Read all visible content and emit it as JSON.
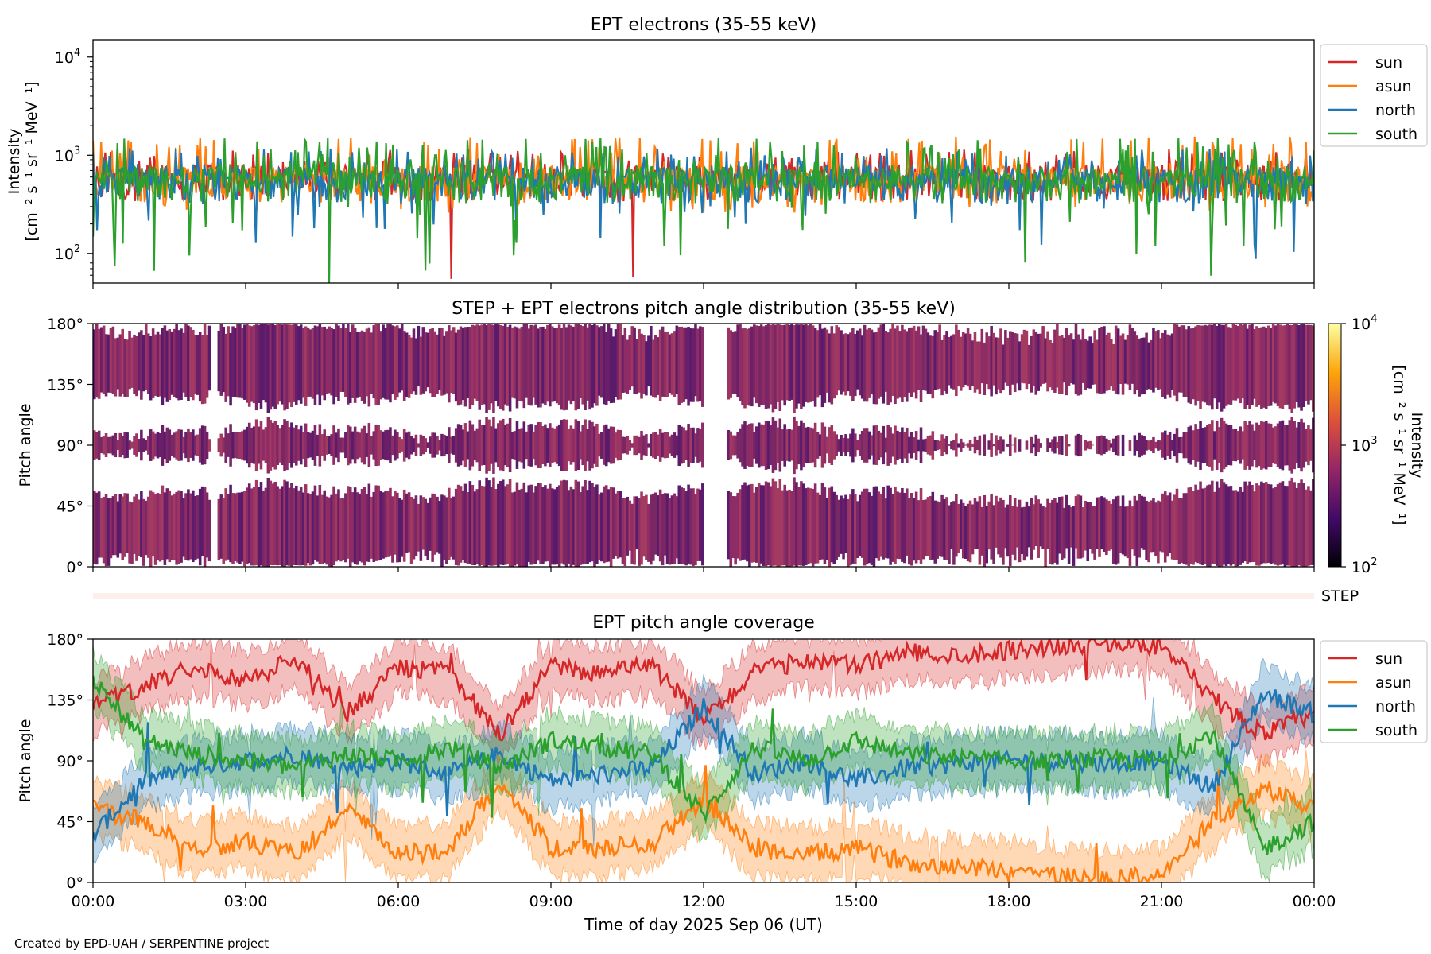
{
  "footer": "Created by EPD-UAH / SERPENTINE project",
  "chart_data": [
    {
      "type": "line",
      "title": "EPT electrons (35-55 keV)",
      "ylabel_line1": "Intensity",
      "ylabel_units": "[cm⁻² s⁻¹ sr⁻¹ MeV⁻¹]",
      "yscale": "log",
      "ylim": [
        50,
        15000
      ],
      "yticks": [
        {
          "value": 100,
          "base": "10",
          "exp": "2"
        },
        {
          "value": 1000,
          "base": "10",
          "exp": "3"
        },
        {
          "value": 10000,
          "base": "10",
          "exp": "4"
        }
      ],
      "xlim_hours": [
        0,
        24
      ],
      "legend_position": "outside-right-top",
      "series": [
        {
          "name": "sun",
          "color": "#d62728",
          "level": 620,
          "noise_low": 380,
          "noise_high": 1150
        },
        {
          "name": "asun",
          "color": "#ff7f0e",
          "level": 600,
          "noise_low": 260,
          "noise_high": 1550
        },
        {
          "name": "north",
          "color": "#1f77b4",
          "level": 580,
          "noise_low": 90,
          "noise_high": 1200
        },
        {
          "name": "south",
          "color": "#2ca02c",
          "level": 590,
          "noise_low": 50,
          "noise_high": 1500
        }
      ],
      "spikes": [
        {
          "series": "south",
          "hour": 4.65,
          "value": 50
        },
        {
          "series": "sun",
          "hour": 7.05,
          "value": 55
        },
        {
          "series": "sun",
          "hour": 10.6,
          "value": 58
        },
        {
          "series": "north",
          "hour": 22.85,
          "value": 88
        }
      ]
    },
    {
      "type": "heatmap",
      "title": "STEP + EPT electrons pitch angle distribution (35-55 keV)",
      "ylabel": "Pitch angle",
      "yticks": [
        "0°",
        "45°",
        "90°",
        "135°",
        "180°"
      ],
      "ylim_deg": [
        0,
        180
      ],
      "xlim_hours": [
        0,
        24
      ],
      "colorbar": {
        "label": "Intensity [cm⁻² s⁻¹ sr⁻¹ MeV⁻¹]",
        "label_title": "Intensity",
        "label_units": "[cm⁻² s⁻¹ sr⁻¹ MeV⁻¹]",
        "scale": "log",
        "range": [
          100,
          10000
        ],
        "ticks": [
          {
            "base": "10",
            "exp": "2"
          },
          {
            "base": "10",
            "exp": "3"
          },
          {
            "base": "10",
            "exp": "4"
          }
        ],
        "colors": [
          "#000004",
          "#420a68",
          "#932667",
          "#dd513a",
          "#fca50a",
          "#fcffa4"
        ]
      },
      "dominant_color": "#8b2e66",
      "vertical_gaps_hours": [
        [
          12.0,
          12.45
        ],
        [
          2.3,
          2.4
        ]
      ]
    },
    {
      "type": "band",
      "label": "STEP",
      "color": "#fdf0ea"
    },
    {
      "type": "line",
      "title": "EPT pitch angle coverage",
      "ylabel": "Pitch angle",
      "yticks": [
        "0°",
        "45°",
        "90°",
        "135°",
        "180°"
      ],
      "ylim_deg": [
        0,
        180
      ],
      "xlabel": "Time of day 2025 Sep 06 (UT)",
      "xticks": [
        "00:00",
        "03:00",
        "06:00",
        "09:00",
        "12:00",
        "15:00",
        "18:00",
        "21:00",
        "00:00"
      ],
      "xlim_hours": [
        0,
        24
      ],
      "legend_position": "outside-right-top",
      "band_halfwidth_deg": 20,
      "series": [
        {
          "name": "sun",
          "color": "#d62728",
          "hours": [
            0,
            1,
            2,
            3,
            4,
            5,
            6,
            7,
            8,
            9,
            10,
            11,
            12,
            13,
            14,
            15,
            16,
            17,
            18,
            19,
            20,
            21,
            22,
            23,
            24
          ],
          "values": [
            130,
            145,
            160,
            150,
            165,
            125,
            160,
            155,
            110,
            160,
            155,
            160,
            120,
            155,
            165,
            160,
            170,
            168,
            172,
            175,
            178,
            175,
            135,
            110,
            125
          ]
        },
        {
          "name": "asun",
          "color": "#ff7f0e",
          "hours": [
            0,
            1,
            2,
            3,
            4,
            5,
            6,
            7,
            8,
            9,
            10,
            11,
            12,
            13,
            14,
            15,
            16,
            17,
            18,
            19,
            20,
            21,
            22,
            23,
            24
          ],
          "values": [
            55,
            45,
            25,
            30,
            20,
            55,
            20,
            25,
            75,
            25,
            25,
            30,
            60,
            25,
            20,
            25,
            15,
            12,
            10,
            5,
            3,
            5,
            45,
            70,
            55
          ]
        },
        {
          "name": "north",
          "color": "#1f77b4",
          "hours": [
            0,
            1,
            2,
            3,
            4,
            5,
            6,
            7,
            8,
            9,
            10,
            11,
            12,
            13,
            14,
            15,
            16,
            17,
            18,
            19,
            20,
            21,
            22,
            23,
            24
          ],
          "values": [
            35,
            75,
            85,
            90,
            95,
            85,
            90,
            80,
            95,
            75,
            80,
            85,
            130,
            80,
            90,
            75,
            85,
            88,
            90,
            90,
            88,
            90,
            70,
            140,
            125
          ]
        },
        {
          "name": "south",
          "color": "#2ca02c",
          "hours": [
            0,
            1,
            2,
            3,
            4,
            5,
            6,
            7,
            8,
            9,
            10,
            11,
            12,
            13,
            14,
            15,
            16,
            17,
            18,
            19,
            20,
            21,
            22,
            23,
            24
          ],
          "values": [
            150,
            105,
            95,
            90,
            85,
            95,
            90,
            100,
            85,
            105,
            100,
            95,
            50,
            100,
            90,
            105,
            95,
            92,
            90,
            90,
            92,
            90,
            110,
            25,
            45
          ]
        }
      ]
    }
  ]
}
